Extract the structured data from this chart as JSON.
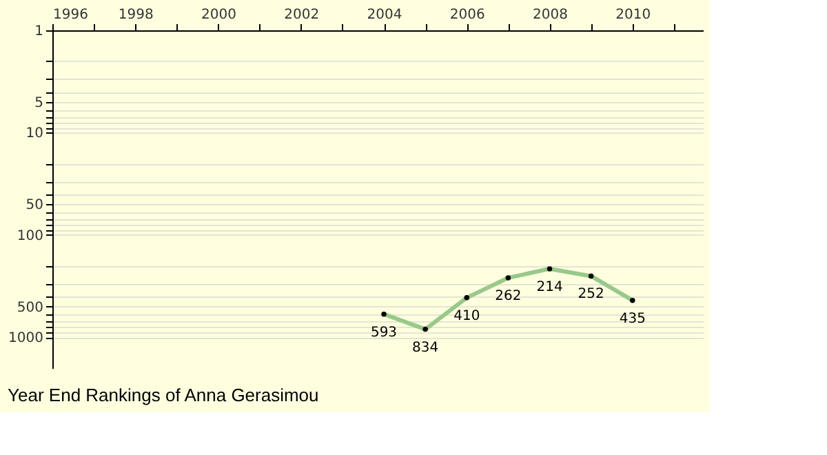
{
  "chart_data": {
    "type": "line",
    "title": "Year End Rankings of  Anna Gerasimou",
    "x": [
      2004,
      2005,
      2006,
      2007,
      2008,
      2009,
      2010
    ],
    "series": [
      {
        "color": "#99c98a",
        "values": [
          593,
          834,
          410,
          262,
          214,
          252,
          435
        ]
      }
    ],
    "data_labels": true,
    "marker": "circle",
    "line_style": "solid",
    "log": "y",
    "grid": "y",
    "xlim": [
      1996,
      2011.7
    ],
    "xticks": [
      1996,
      {
        "value": 1997,
        "label": null
      },
      1998,
      {
        "value": 1999,
        "label": null
      },
      2000,
      {
        "value": 2001,
        "label": null
      },
      2002,
      {
        "value": 2003,
        "label": null
      },
      2004,
      {
        "value": 2005,
        "label": null
      },
      2006,
      {
        "value": 2007,
        "label": null
      },
      2008,
      {
        "value": 2009,
        "label": null
      },
      2010,
      {
        "value": 2011,
        "label": null
      }
    ],
    "ylim": [
      2000,
      1
    ],
    "yticks": [
      1,
      {
        "value": 2,
        "label": null
      },
      {
        "value": 3,
        "label": null
      },
      {
        "value": 4,
        "label": null
      },
      5,
      {
        "value": 6,
        "label": null
      },
      {
        "value": 7,
        "label": null
      },
      {
        "value": 8,
        "label": null
      },
      {
        "value": 9,
        "label": null
      },
      10,
      {
        "value": 20,
        "label": null
      },
      {
        "value": 30,
        "label": null
      },
      {
        "value": 40,
        "label": null
      },
      50,
      {
        "value": 60,
        "label": null
      },
      {
        "value": 70,
        "label": null
      },
      {
        "value": 80,
        "label": null
      },
      {
        "value": 90,
        "label": null
      },
      100,
      {
        "value": 200,
        "label": null
      },
      {
        "value": 300,
        "label": null
      },
      {
        "value": 400,
        "label": null
      },
      500,
      {
        "value": 600,
        "label": null
      },
      {
        "value": 700,
        "label": null
      },
      {
        "value": 800,
        "label": null
      },
      {
        "value": 900,
        "label": null
      },
      1000
    ]
  }
}
